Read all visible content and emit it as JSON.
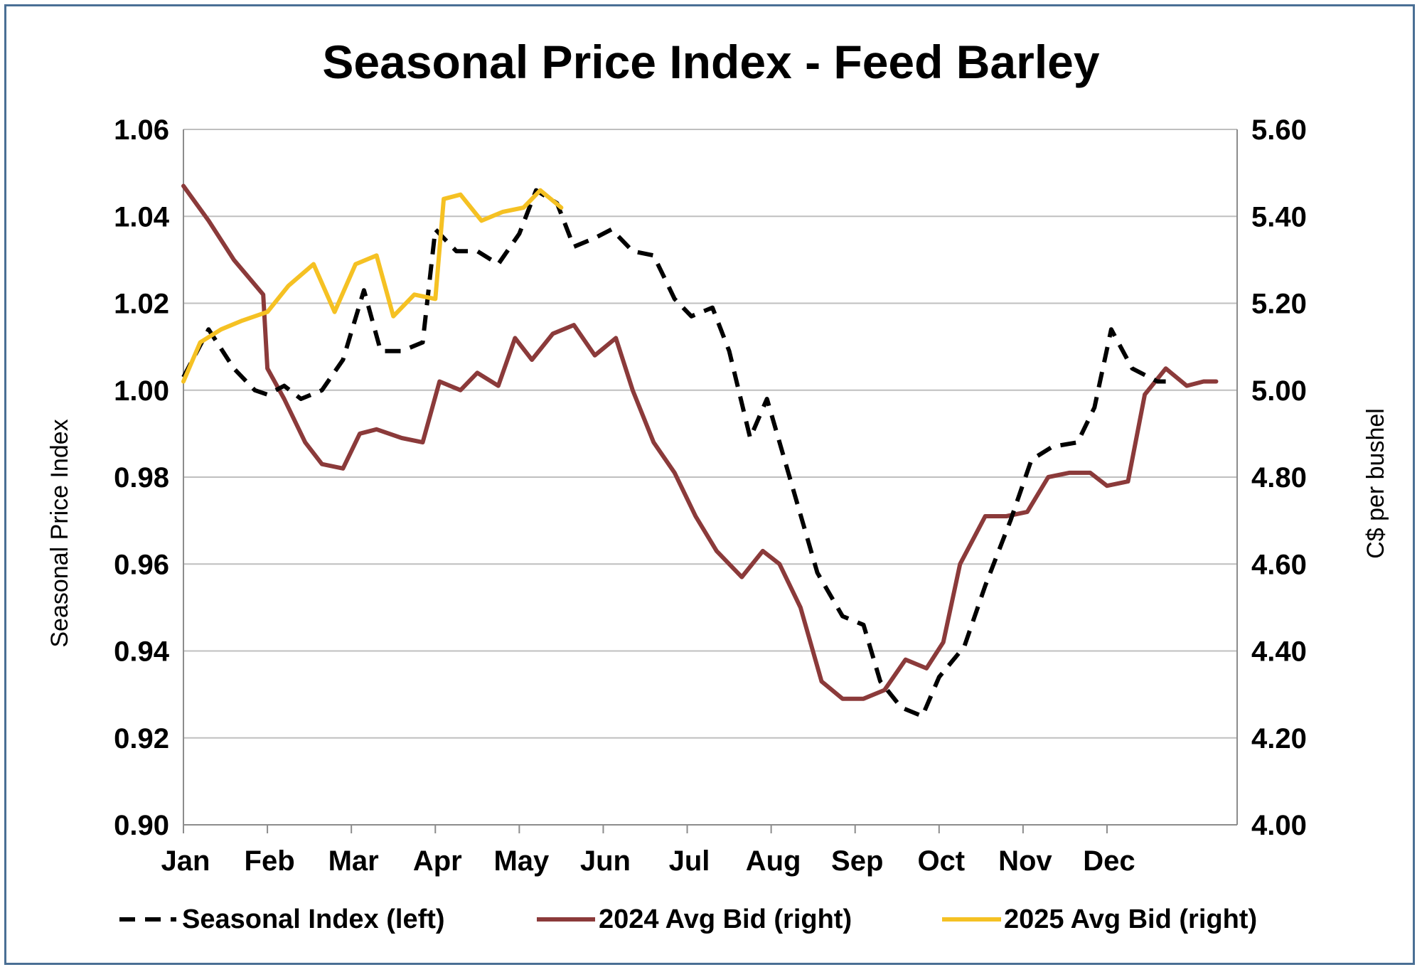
{
  "chart_data": {
    "type": "line",
    "title": "Seasonal Price Index - Feed Barley",
    "xlabel": "",
    "ylabel_left": "Seasonal Price Index",
    "ylabel_right": "C$ per bushel",
    "x_tick_labels": [
      "Jan",
      "Feb",
      "Mar",
      "Apr",
      "May",
      "Jun",
      "Jul",
      "Aug",
      "Sep",
      "Oct",
      "Nov",
      "Dec"
    ],
    "ylim_left": [
      0.9,
      1.06
    ],
    "ylim_right": [
      4.0,
      5.6
    ],
    "y_left_ticks": [
      "0.90",
      "0.92",
      "0.94",
      "0.96",
      "0.98",
      "1.00",
      "1.02",
      "1.04",
      "1.06"
    ],
    "y_right_ticks": [
      "4.00",
      "4.20",
      "4.40",
      "4.60",
      "4.80",
      "5.00",
      "5.20",
      "5.40",
      "5.60"
    ],
    "grid": "horizontal",
    "legend_position": "bottom",
    "series": [
      {
        "name": "Seasonal Index (left)",
        "axis": "left",
        "color": "#000000",
        "style": "dashed",
        "points": [
          [
            0.0,
            1.003
          ],
          [
            0.3,
            1.014
          ],
          [
            0.6,
            1.005
          ],
          [
            0.85,
            1.0
          ],
          [
            1.0,
            0.999
          ],
          [
            1.2,
            1.001
          ],
          [
            1.4,
            0.998
          ],
          [
            1.65,
            1.0
          ],
          [
            1.9,
            1.007
          ],
          [
            2.15,
            1.023
          ],
          [
            2.35,
            1.009
          ],
          [
            2.6,
            1.009
          ],
          [
            2.85,
            1.011
          ],
          [
            3.0,
            1.037
          ],
          [
            3.25,
            1.032
          ],
          [
            3.5,
            1.032
          ],
          [
            3.75,
            1.029
          ],
          [
            4.0,
            1.036
          ],
          [
            4.2,
            1.046
          ],
          [
            4.45,
            1.043
          ],
          [
            4.65,
            1.033
          ],
          [
            4.9,
            1.035
          ],
          [
            5.1,
            1.037
          ],
          [
            5.35,
            1.032
          ],
          [
            5.6,
            1.031
          ],
          [
            5.85,
            1.021
          ],
          [
            6.05,
            1.017
          ],
          [
            6.3,
            1.019
          ],
          [
            6.5,
            1.009
          ],
          [
            6.75,
            0.989
          ],
          [
            6.95,
            0.998
          ],
          [
            7.25,
            0.978
          ],
          [
            7.55,
            0.958
          ],
          [
            7.85,
            0.948
          ],
          [
            8.1,
            0.946
          ],
          [
            8.3,
            0.933
          ],
          [
            8.55,
            0.927
          ],
          [
            8.8,
            0.925
          ],
          [
            9.0,
            0.934
          ],
          [
            9.3,
            0.941
          ],
          [
            9.55,
            0.955
          ],
          [
            9.85,
            0.97
          ],
          [
            10.1,
            0.984
          ],
          [
            10.35,
            0.987
          ],
          [
            10.65,
            0.988
          ],
          [
            10.85,
            0.996
          ],
          [
            11.05,
            1.014
          ],
          [
            11.3,
            1.005
          ],
          [
            11.6,
            1.002
          ],
          [
            11.7,
            1.002
          ]
        ]
      },
      {
        "name": "2024 Avg Bid (right)",
        "axis": "right",
        "color": "#8b3a3a",
        "style": "solid",
        "points": [
          [
            0.0,
            5.47
          ],
          [
            0.3,
            5.39
          ],
          [
            0.6,
            5.3
          ],
          [
            0.95,
            5.22
          ],
          [
            1.0,
            5.05
          ],
          [
            1.2,
            4.98
          ],
          [
            1.45,
            4.88
          ],
          [
            1.65,
            4.83
          ],
          [
            1.9,
            4.82
          ],
          [
            2.1,
            4.9
          ],
          [
            2.3,
            4.91
          ],
          [
            2.6,
            4.89
          ],
          [
            2.85,
            4.88
          ],
          [
            3.05,
            5.02
          ],
          [
            3.3,
            5.0
          ],
          [
            3.5,
            5.04
          ],
          [
            3.75,
            5.01
          ],
          [
            3.95,
            5.12
          ],
          [
            4.15,
            5.07
          ],
          [
            4.4,
            5.13
          ],
          [
            4.65,
            5.15
          ],
          [
            4.9,
            5.08
          ],
          [
            5.15,
            5.12
          ],
          [
            5.35,
            5.0
          ],
          [
            5.6,
            4.88
          ],
          [
            5.85,
            4.81
          ],
          [
            6.1,
            4.71
          ],
          [
            6.35,
            4.63
          ],
          [
            6.65,
            4.57
          ],
          [
            6.9,
            4.63
          ],
          [
            7.1,
            4.6
          ],
          [
            7.35,
            4.5
          ],
          [
            7.6,
            4.33
          ],
          [
            7.85,
            4.29
          ],
          [
            8.1,
            4.29
          ],
          [
            8.35,
            4.31
          ],
          [
            8.6,
            4.38
          ],
          [
            8.85,
            4.36
          ],
          [
            9.05,
            4.42
          ],
          [
            9.25,
            4.6
          ],
          [
            9.55,
            4.71
          ],
          [
            9.8,
            4.71
          ],
          [
            10.05,
            4.72
          ],
          [
            10.3,
            4.8
          ],
          [
            10.55,
            4.81
          ],
          [
            10.8,
            4.81
          ],
          [
            11.0,
            4.78
          ],
          [
            11.25,
            4.79
          ],
          [
            11.45,
            4.99
          ],
          [
            11.7,
            5.05
          ],
          [
            11.95,
            5.01
          ],
          [
            12.15,
            5.02
          ],
          [
            12.3,
            5.02
          ]
        ]
      },
      {
        "name": "2025 Avg Bid (right)",
        "axis": "right",
        "color": "#f5c123",
        "style": "solid",
        "points": [
          [
            0.0,
            5.02
          ],
          [
            0.2,
            5.11
          ],
          [
            0.45,
            5.14
          ],
          [
            0.7,
            5.16
          ],
          [
            1.0,
            5.18
          ],
          [
            1.25,
            5.24
          ],
          [
            1.55,
            5.29
          ],
          [
            1.8,
            5.18
          ],
          [
            2.05,
            5.29
          ],
          [
            2.3,
            5.31
          ],
          [
            2.5,
            5.17
          ],
          [
            2.75,
            5.22
          ],
          [
            3.0,
            5.21
          ],
          [
            3.1,
            5.44
          ],
          [
            3.3,
            5.45
          ],
          [
            3.55,
            5.39
          ],
          [
            3.8,
            5.41
          ],
          [
            4.05,
            5.42
          ],
          [
            4.25,
            5.46
          ],
          [
            4.5,
            5.42
          ]
        ]
      }
    ]
  }
}
